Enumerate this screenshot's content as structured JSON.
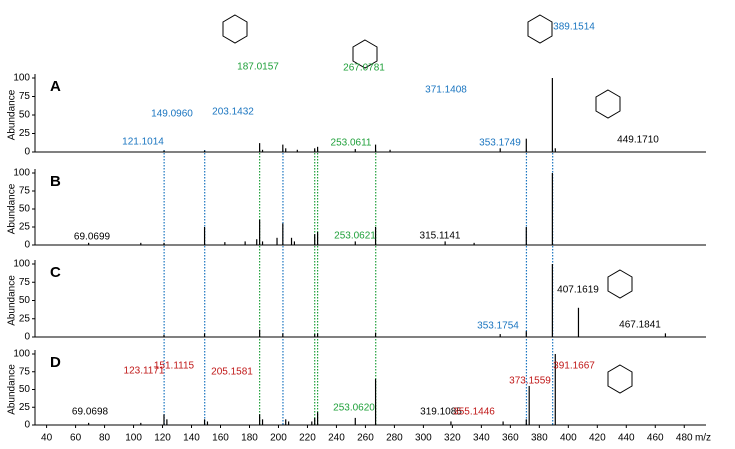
{
  "chart_data": [
    {
      "type": "bar",
      "label": "A",
      "ylabel": "Abundance",
      "ylim": [
        0,
        100
      ],
      "yticks": [
        0,
        25,
        50,
        75,
        100
      ],
      "xlim": [
        32,
        495
      ],
      "color": "#000000",
      "x": [
        121,
        149,
        187,
        189,
        203,
        205,
        213,
        225,
        227,
        253,
        267,
        277,
        353,
        371,
        389,
        391
      ],
      "values": [
        2,
        2,
        12,
        3,
        10,
        5,
        3,
        5,
        7,
        4,
        10,
        3,
        5,
        18,
        100,
        5
      ],
      "annotations": [
        {
          "text": "121.1014",
          "color": "#1a75c0"
        },
        {
          "text": "149.0960",
          "color": "#1a75c0"
        },
        {
          "text": "203.1432",
          "color": "#1a75c0"
        },
        {
          "text": "187.0157",
          "color": "#1fa03a"
        },
        {
          "text": "267.0781",
          "color": "#1fa03a"
        },
        {
          "text": "253.0611",
          "color": "#1fa03a"
        },
        {
          "text": "371.1408",
          "color": "#1a75c0"
        },
        {
          "text": "389.1514",
          "color": "#1a75c0"
        },
        {
          "text": "353.1749",
          "color": "#1a75c0"
        },
        {
          "text": "449.1710",
          "color": "#000000"
        }
      ]
    },
    {
      "type": "bar",
      "label": "B",
      "ylabel": "Abundance",
      "ylim": [
        0,
        100
      ],
      "yticks": [
        0,
        25,
        50,
        75,
        100
      ],
      "xlim": [
        32,
        495
      ],
      "color": "#000000",
      "x": [
        69,
        105,
        121,
        149,
        163,
        177,
        185,
        187,
        189,
        199,
        203,
        209,
        211,
        225,
        227,
        253,
        267,
        315,
        335,
        371,
        389
      ],
      "values": [
        3,
        3,
        3,
        25,
        4,
        5,
        8,
        35,
        5,
        10,
        30,
        10,
        5,
        15,
        18,
        5,
        25,
        5,
        3,
        25,
        100
      ],
      "annotations": [
        {
          "text": "69.0699",
          "color": "#000000"
        },
        {
          "text": "253.0621",
          "color": "#1fa03a"
        },
        {
          "text": "315.1141",
          "color": "#000000"
        }
      ]
    },
    {
      "type": "bar",
      "label": "C",
      "ylabel": "Abundance",
      "ylim": [
        0,
        100
      ],
      "yticks": [
        0,
        25,
        50,
        75,
        100
      ],
      "xlim": [
        32,
        495
      ],
      "color": "#000000",
      "x": [
        121,
        149,
        187,
        203,
        225,
        227,
        267,
        353,
        371,
        389,
        407,
        467
      ],
      "values": [
        3,
        5,
        10,
        5,
        4,
        5,
        6,
        4,
        8,
        100,
        40,
        5
      ],
      "annotations": [
        {
          "text": "353.1754",
          "color": "#1a75c0"
        },
        {
          "text": "407.1619",
          "color": "#000000"
        },
        {
          "text": "467.1841",
          "color": "#000000"
        }
      ]
    },
    {
      "type": "bar",
      "label": "D",
      "ylabel": "Abundance",
      "ylim": [
        0,
        100
      ],
      "yticks": [
        0,
        25,
        50,
        75,
        100
      ],
      "xlim": [
        32,
        495
      ],
      "color": "#000000",
      "xlabel": "m/z",
      "xticks": [
        40,
        60,
        80,
        100,
        120,
        140,
        160,
        180,
        200,
        220,
        240,
        260,
        280,
        300,
        320,
        340,
        360,
        380,
        400,
        420,
        440,
        460,
        480
      ],
      "x": [
        69,
        105,
        121,
        123,
        149,
        151,
        187,
        189,
        205,
        207,
        223,
        225,
        227,
        253,
        267,
        319,
        355,
        371,
        373,
        391
      ],
      "values": [
        3,
        3,
        15,
        8,
        8,
        5,
        15,
        8,
        8,
        5,
        5,
        10,
        18,
        10,
        65,
        5,
        5,
        8,
        55,
        100
      ],
      "annotations": [
        {
          "text": "69.0698",
          "color": "#000000"
        },
        {
          "text": "123.1171",
          "color": "#c01818"
        },
        {
          "text": "151.1115",
          "color": "#c01818"
        },
        {
          "text": "205.1581",
          "color": "#c01818"
        },
        {
          "text": "253.0620",
          "color": "#1fa03a"
        },
        {
          "text": "319.1085",
          "color": "#000000"
        },
        {
          "text": "355.1446",
          "color": "#c01818"
        },
        {
          "text": "373.1559",
          "color": "#c01818"
        },
        {
          "text": "391.1667",
          "color": "#c01818"
        }
      ]
    }
  ],
  "guides": [
    {
      "x": 121.1,
      "color": "#1a75c0"
    },
    {
      "x": 149.1,
      "color": "#1a75c0"
    },
    {
      "x": 187.0,
      "color": "#1fa03a"
    },
    {
      "x": 203.1,
      "color": "#1a75c0"
    },
    {
      "x": 225.0,
      "color": "#1fa03a"
    },
    {
      "x": 227.0,
      "color": "#1fa03a"
    },
    {
      "x": 267.1,
      "color": "#1fa03a"
    },
    {
      "x": 371.1,
      "color": "#1a75c0"
    },
    {
      "x": 389.2,
      "color": "#1a75c0"
    }
  ]
}
